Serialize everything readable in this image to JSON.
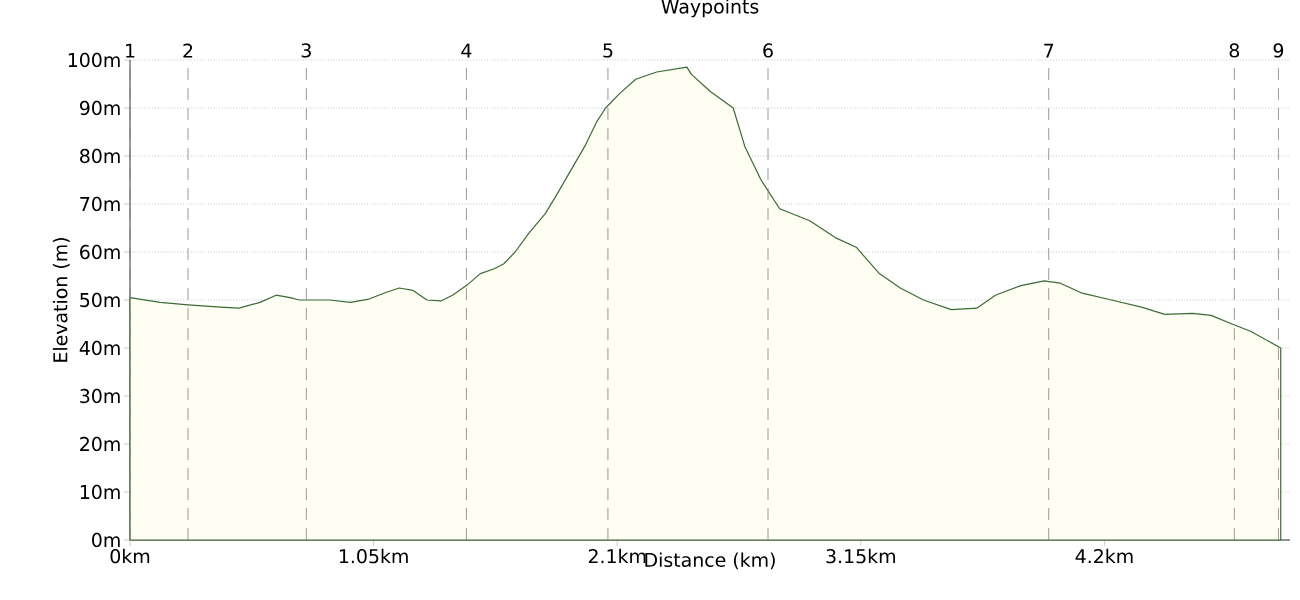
{
  "chart_data": {
    "type": "area",
    "title": "Waypoints",
    "xlabel": "Distance (km)",
    "ylabel": "Elevation (m)",
    "annotations": [
      {
        "text": "1",
        "x": 0
      },
      {
        "text": "2",
        "x": 0.25
      },
      {
        "text": "3",
        "x": 0.76
      },
      {
        "text": "4",
        "x": 1.45
      },
      {
        "text": "5",
        "x": 2.06
      },
      {
        "text": "6",
        "x": 2.75
      },
      {
        "text": "7",
        "x": 3.96
      },
      {
        "text": "8",
        "x": 4.76
      },
      {
        "text": "9",
        "x": 4.95
      }
    ],
    "x": [
      0,
      0.13,
      0.25,
      0.39,
      0.47,
      0.56,
      0.63,
      0.69,
      0.73,
      0.86,
      0.95,
      1.03,
      1.1,
      1.16,
      1.22,
      1.28,
      1.34,
      1.39,
      1.45,
      1.51,
      1.57,
      1.61,
      1.66,
      1.72,
      1.79,
      1.84,
      1.9,
      1.96,
      2.01,
      2.05,
      2.11,
      2.18,
      2.27,
      2.4,
      2.42,
      2.5,
      2.6,
      2.65,
      2.72,
      2.8,
      2.93,
      3.04,
      3.13,
      3.23,
      3.32,
      3.42,
      3.54,
      3.65,
      3.73,
      3.84,
      3.94,
      4.01,
      4.1,
      4.23,
      4.36,
      4.46,
      4.58,
      4.66,
      4.75,
      4.83,
      4.96
    ],
    "series": [
      {
        "color": "#3a6b35",
        "values": [
          50.5,
          49.5,
          49,
          48.5,
          48.3,
          49.5,
          51,
          50.5,
          50,
          50,
          49.5,
          50.2,
          51.5,
          52.5,
          52,
          50,
          49.8,
          51,
          53,
          55.5,
          56.5,
          57.5,
          60,
          64,
          68,
          72,
          77,
          82,
          87,
          90,
          93,
          96,
          97.5,
          98.5,
          97,
          93.5,
          90,
          82,
          75,
          69,
          66.5,
          63,
          61,
          55.5,
          52.5,
          50,
          48,
          48.3,
          51,
          53,
          54,
          53.5,
          51.5,
          50,
          48.5,
          47,
          47.2,
          46.8,
          45,
          43.5,
          40
        ]
      }
    ],
    "xlim": [
      0,
      5.0
    ],
    "xticks": [
      {
        "value": 0,
        "label": "0km"
      },
      {
        "value": 1.05,
        "label": "1.05km"
      },
      {
        "value": 2.1,
        "label": "2.1km"
      },
      {
        "value": 3.15,
        "label": "3.15km"
      },
      {
        "value": 4.2,
        "label": "4.2km"
      }
    ],
    "ylim": [
      0,
      100
    ],
    "yticks": [
      {
        "value": 0,
        "label": "0m"
      },
      {
        "value": 10,
        "label": "10m"
      },
      {
        "value": 20,
        "label": "20m"
      },
      {
        "value": 30,
        "label": "30m"
      },
      {
        "value": 40,
        "label": "40m"
      },
      {
        "value": 50,
        "label": "50m"
      },
      {
        "value": 60,
        "label": "60m"
      },
      {
        "value": 70,
        "label": "70m"
      },
      {
        "value": 80,
        "label": "80m"
      },
      {
        "value": 90,
        "label": "90m"
      },
      {
        "value": 100,
        "label": "100m"
      }
    ],
    "grid": "y",
    "ref_lines": [
      {
        "axis": "x",
        "value": 0,
        "color": "#808080",
        "line_style": "dashed"
      },
      {
        "axis": "x",
        "value": 0.25,
        "color": "#808080",
        "line_style": "dashed"
      },
      {
        "axis": "x",
        "value": 0.76,
        "color": "#808080",
        "line_style": "dashed"
      },
      {
        "axis": "x",
        "value": 1.45,
        "color": "#808080",
        "line_style": "dashed"
      },
      {
        "axis": "x",
        "value": 2.06,
        "color": "#808080",
        "line_style": "dashed"
      },
      {
        "axis": "x",
        "value": 2.75,
        "color": "#808080",
        "line_style": "dashed"
      },
      {
        "axis": "x",
        "value": 3.96,
        "color": "#808080",
        "line_style": "dashed"
      },
      {
        "axis": "x",
        "value": 4.76,
        "color": "#808080",
        "line_style": "dashed"
      },
      {
        "axis": "x",
        "value": 4.95,
        "color": "#808080",
        "line_style": "dashed"
      }
    ]
  }
}
